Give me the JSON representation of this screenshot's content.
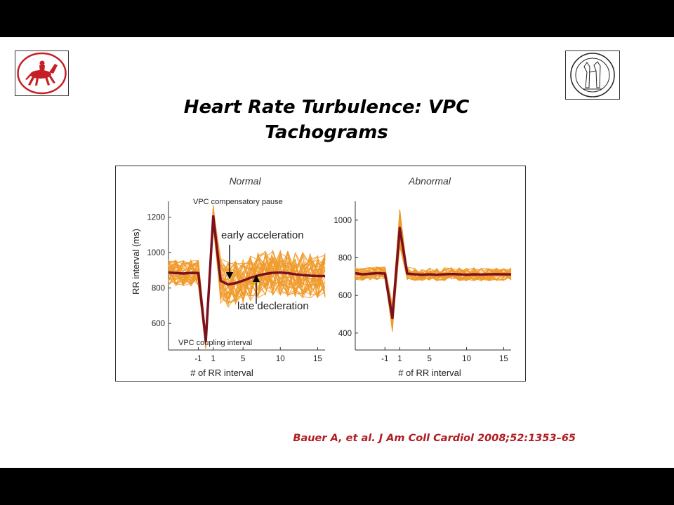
{
  "slide": {
    "title_line1": "Heart Rate Turbulence: VPC",
    "title_line2": "Tachograms",
    "citation": "Bauer A, et al. J Am Coll Cardiol 2008;52:1353–65",
    "logo_left": "university-horseman-logo",
    "logo_right": "university-seal-logo"
  },
  "colors": {
    "thin_lines": "#f09a2a",
    "mean_line": "#7a1020",
    "band": "#ee8a1a",
    "citation": "#b01c22",
    "bars": "#000000"
  },
  "chart_data": [
    {
      "type": "line",
      "title": "Normal",
      "xlabel": "# of RR interval",
      "ylabel": "RR interval (ms)",
      "xlim": [
        -5,
        16
      ],
      "ylim": [
        450,
        1290
      ],
      "x_ticks": [
        -1,
        1,
        5,
        10,
        15
      ],
      "y_ticks": [
        600,
        800,
        1000,
        1200
      ],
      "annotations": [
        "VPC compensatory pause",
        "early acceleration",
        "late decleration",
        "VPC coupling interval"
      ],
      "series": [
        {
          "role": "mean",
          "x": [
            -5,
            -4,
            -3,
            -2,
            -1,
            0,
            1,
            2,
            3,
            4,
            5,
            6,
            7,
            8,
            9,
            10,
            11,
            12,
            13,
            14,
            15,
            16
          ],
          "values": [
            888,
            885,
            882,
            886,
            885,
            500,
            1205,
            840,
            820,
            828,
            842,
            858,
            870,
            880,
            886,
            888,
            884,
            878,
            873,
            870,
            868,
            868
          ]
        }
      ]
    },
    {
      "type": "line",
      "title": "Abnormal",
      "xlabel": "# of RR interval",
      "ylabel": "",
      "xlim": [
        -5,
        16
      ],
      "ylim": [
        310,
        1100
      ],
      "x_ticks": [
        -1,
        1,
        5,
        10,
        15
      ],
      "y_ticks": [
        400,
        600,
        800,
        1000
      ],
      "series": [
        {
          "role": "mean",
          "x": [
            -5,
            -4,
            -3,
            -2,
            -1,
            0,
            1,
            2,
            3,
            4,
            5,
            6,
            7,
            8,
            9,
            10,
            11,
            12,
            13,
            14,
            15,
            16
          ],
          "values": [
            718,
            712,
            715,
            718,
            716,
            480,
            958,
            716,
            712,
            710,
            712,
            710,
            712,
            714,
            712,
            710,
            712,
            711,
            712,
            713,
            712,
            712
          ]
        }
      ]
    }
  ]
}
